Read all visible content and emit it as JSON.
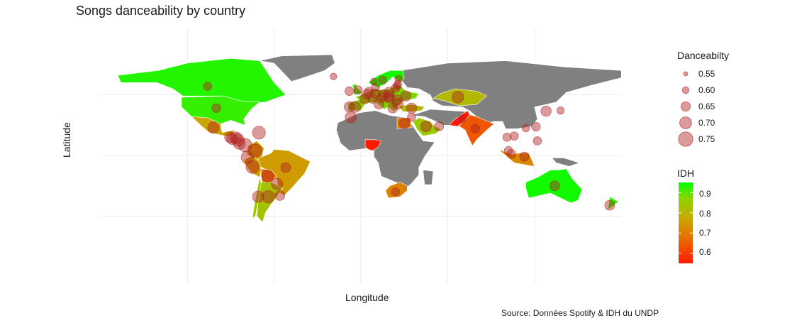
{
  "chart_data": {
    "type": "map",
    "title": "Songs danceability by country",
    "xlabel": "Longitude",
    "ylabel": "Latitude",
    "caption": "Source: Données Spotify & IDH du UNDP",
    "size_legend": {
      "title": "Danceabilty",
      "breaks": [
        0.55,
        0.6,
        0.65,
        0.7,
        0.75
      ],
      "labels": [
        "0.55",
        "0.60",
        "0.65",
        "0.70",
        "0.75"
      ]
    },
    "color_legend": {
      "title": "IDH",
      "range": [
        0.55,
        0.95
      ],
      "breaks": [
        0.9,
        0.8,
        0.7,
        0.6
      ],
      "labels": [
        "0.9",
        "0.8",
        "0.7",
        "0.6"
      ],
      "colors": {
        "low": "#ff1a00",
        "mid_low": "#e86a00",
        "mid": "#c8a800",
        "high": "#00ff00"
      }
    },
    "no_data_color": "#808080",
    "point_color": "#b22222",
    "countries": [
      {
        "name": "Canada",
        "lon": -106,
        "lat": 57,
        "idh": 0.93,
        "danceability": 0.63
      },
      {
        "name": "United States",
        "lon": -100,
        "lat": 39,
        "idh": 0.92,
        "danceability": 0.64
      },
      {
        "name": "Mexico",
        "lon": -102,
        "lat": 23,
        "idh": 0.77,
        "danceability": 0.69
      },
      {
        "name": "Guatemala",
        "lon": -90.5,
        "lat": 15,
        "idh": 0.65,
        "danceability": 0.68
      },
      {
        "name": "Honduras",
        "lon": -86.5,
        "lat": 14.5,
        "idh": 0.62,
        "danceability": 0.7
      },
      {
        "name": "El Salvador",
        "lon": -88.9,
        "lat": 13.7,
        "idh": 0.67,
        "danceability": 0.69
      },
      {
        "name": "Nicaragua",
        "lon": -85,
        "lat": 12.8,
        "idh": 0.65,
        "danceability": 0.71
      },
      {
        "name": "Costa Rica",
        "lon": -84,
        "lat": 10,
        "idh": 0.79,
        "danceability": 0.7
      },
      {
        "name": "Panama",
        "lon": -80,
        "lat": 8.5,
        "idh": 0.79,
        "danceability": 0.73
      },
      {
        "name": "Dominican Republic",
        "lon": -70.5,
        "lat": 18.8,
        "idh": 0.74,
        "danceability": 0.72
      },
      {
        "name": "Colombia",
        "lon": -73,
        "lat": 4,
        "idh": 0.75,
        "danceability": 0.72
      },
      {
        "name": "Ecuador",
        "lon": -78.5,
        "lat": -1.5,
        "idh": 0.75,
        "danceability": 0.71
      },
      {
        "name": "Peru",
        "lon": -75,
        "lat": -9.5,
        "idh": 0.75,
        "danceability": 0.72
      },
      {
        "name": "Bolivia",
        "lon": -64.5,
        "lat": -17,
        "idh": 0.69,
        "danceability": 0.7
      },
      {
        "name": "Paraguay",
        "lon": -58,
        "lat": -23.5,
        "idh": 0.7,
        "danceability": 0.69
      },
      {
        "name": "Brazil",
        "lon": -52,
        "lat": -10,
        "idh": 0.75,
        "danceability": 0.66
      },
      {
        "name": "Uruguay",
        "lon": -56,
        "lat": -33,
        "idh": 0.8,
        "danceability": 0.66
      },
      {
        "name": "Argentina",
        "lon": -64,
        "lat": -34,
        "idh": 0.83,
        "danceability": 0.71
      },
      {
        "name": "Chile",
        "lon": -71,
        "lat": -34,
        "idh": 0.84,
        "danceability": 0.69
      },
      {
        "name": "Iceland",
        "lon": -19,
        "lat": 65,
        "idh": 0.93,
        "danceability": 0.6
      },
      {
        "name": "Ireland",
        "lon": -8,
        "lat": 53,
        "idh": 0.93,
        "danceability": 0.64
      },
      {
        "name": "United Kingdom",
        "lon": -2,
        "lat": 54,
        "idh": 0.92,
        "danceability": 0.63
      },
      {
        "name": "Portugal",
        "lon": -8,
        "lat": 40,
        "idh": 0.84,
        "danceability": 0.67
      },
      {
        "name": "Spain",
        "lon": -4,
        "lat": 40,
        "idh": 0.88,
        "danceability": 0.68
      },
      {
        "name": "Morocco",
        "lon": -7,
        "lat": 31.5,
        "idh": 0.67,
        "danceability": 0.69
      },
      {
        "name": "Norway",
        "lon": 9,
        "lat": 61,
        "idh": 0.95,
        "danceability": 0.6
      },
      {
        "name": "Sweden",
        "lon": 15,
        "lat": 62,
        "idh": 0.93,
        "danceability": 0.63
      },
      {
        "name": "Finland",
        "lon": 26,
        "lat": 63,
        "idh": 0.92,
        "danceability": 0.61
      },
      {
        "name": "Denmark",
        "lon": 10,
        "lat": 56,
        "idh": 0.93,
        "danceability": 0.63
      },
      {
        "name": "Netherlands",
        "lon": 5.5,
        "lat": 52.3,
        "idh": 0.93,
        "danceability": 0.65
      },
      {
        "name": "Belgium",
        "lon": 4.5,
        "lat": 50.6,
        "idh": 0.92,
        "danceability": 0.66
      },
      {
        "name": "France",
        "lon": 2.5,
        "lat": 46.5,
        "idh": 0.89,
        "danceability": 0.66
      },
      {
        "name": "Switzerland",
        "lon": 8,
        "lat": 46.8,
        "idh": 0.95,
        "danceability": 0.65
      },
      {
        "name": "Germany",
        "lon": 10,
        "lat": 51,
        "idh": 0.94,
        "danceability": 0.65
      },
      {
        "name": "Austria",
        "lon": 14.5,
        "lat": 47.5,
        "idh": 0.91,
        "danceability": 0.66
      },
      {
        "name": "Italy",
        "lon": 12.5,
        "lat": 42.5,
        "idh": 0.88,
        "danceability": 0.67
      },
      {
        "name": "Poland",
        "lon": 19.5,
        "lat": 52,
        "idh": 0.87,
        "danceability": 0.67
      },
      {
        "name": "Czech Republic",
        "lon": 15.5,
        "lat": 49.8,
        "idh": 0.89,
        "danceability": 0.67
      },
      {
        "name": "Slovakia",
        "lon": 19.5,
        "lat": 48.7,
        "idh": 0.85,
        "danceability": 0.68
      },
      {
        "name": "Hungary",
        "lon": 19.5,
        "lat": 47.2,
        "idh": 0.84,
        "danceability": 0.66
      },
      {
        "name": "Romania",
        "lon": 25,
        "lat": 45.8,
        "idh": 0.82,
        "danceability": 0.67
      },
      {
        "name": "Bulgaria",
        "lon": 25.5,
        "lat": 42.7,
        "idh": 0.81,
        "danceability": 0.68
      },
      {
        "name": "Greece",
        "lon": 22,
        "lat": 39,
        "idh": 0.87,
        "danceability": 0.66
      },
      {
        "name": "Lithuania",
        "lon": 24,
        "lat": 55.5,
        "idh": 0.86,
        "danceability": 0.64
      },
      {
        "name": "Latvia",
        "lon": 25,
        "lat": 57,
        "idh": 0.85,
        "danceability": 0.62
      },
      {
        "name": "Estonia",
        "lon": 25.5,
        "lat": 58.7,
        "idh": 0.88,
        "danceability": 0.62
      },
      {
        "name": "Ukraine",
        "lon": 31,
        "lat": 49,
        "idh": 0.77,
        "danceability": 0.67
      },
      {
        "name": "Turkey",
        "lon": 35,
        "lat": 39,
        "idh": 0.81,
        "danceability": 0.67
      },
      {
        "name": "Israel",
        "lon": 35,
        "lat": 31.5,
        "idh": 0.91,
        "danceability": 0.63
      },
      {
        "name": "Egypt",
        "lon": 30,
        "lat": 26.5,
        "idh": 0.7,
        "danceability": 0.67
      },
      {
        "name": "Saudi Arabia",
        "lon": 45,
        "lat": 24,
        "idh": 0.85,
        "danceability": 0.68
      },
      {
        "name": "United Arab Emirates",
        "lon": 54,
        "lat": 24,
        "idh": 0.89,
        "danceability": 0.65
      },
      {
        "name": "Kazakhstan",
        "lon": 67,
        "lat": 48,
        "idh": 0.81,
        "danceability": 0.7
      },
      {
        "name": "Pakistan",
        "lon": 70,
        "lat": 30,
        "idh": 0.54,
        "danceability": 0.62
      },
      {
        "name": "India",
        "lon": 79,
        "lat": 22,
        "idh": 0.64,
        "danceability": 0.64
      },
      {
        "name": "Vietnam",
        "lon": 106,
        "lat": 16,
        "idh": 0.7,
        "danceability": 0.63
      },
      {
        "name": "Thailand",
        "lon": 101,
        "lat": 15,
        "idh": 0.78,
        "danceability": 0.63
      },
      {
        "name": "Hong Kong",
        "lon": 114,
        "lat": 22.4,
        "idh": 0.95,
        "danceability": 0.61
      },
      {
        "name": "Taiwan",
        "lon": 121,
        "lat": 23.7,
        "idh": 0.91,
        "danceability": 0.64
      },
      {
        "name": "Philippines",
        "lon": 122,
        "lat": 12,
        "idh": 0.72,
        "danceability": 0.63
      },
      {
        "name": "Malaysia",
        "lon": 102,
        "lat": 4,
        "idh": 0.81,
        "danceability": 0.63
      },
      {
        "name": "Singapore",
        "lon": 104,
        "lat": 1.3,
        "idh": 0.94,
        "danceability": 0.64
      },
      {
        "name": "Indonesia",
        "lon": 113,
        "lat": -1,
        "idh": 0.72,
        "danceability": 0.65
      },
      {
        "name": "South Korea",
        "lon": 128,
        "lat": 36.5,
        "idh": 0.92,
        "danceability": 0.67
      },
      {
        "name": "Japan",
        "lon": 138,
        "lat": 37,
        "idh": 0.92,
        "danceability": 0.61
      },
      {
        "name": "Australia",
        "lon": 134,
        "lat": -25,
        "idh": 0.94,
        "danceability": 0.66
      },
      {
        "name": "New Zealand",
        "lon": 172,
        "lat": -41,
        "idh": 0.93,
        "danceability": 0.66
      },
      {
        "name": "South Africa",
        "lon": 24,
        "lat": -30,
        "idh": 0.71,
        "danceability": 0.63
      },
      {
        "name": "Nigeria",
        "lon": 8,
        "lat": 9.5,
        "idh": 0.54,
        "danceability": null
      }
    ]
  }
}
